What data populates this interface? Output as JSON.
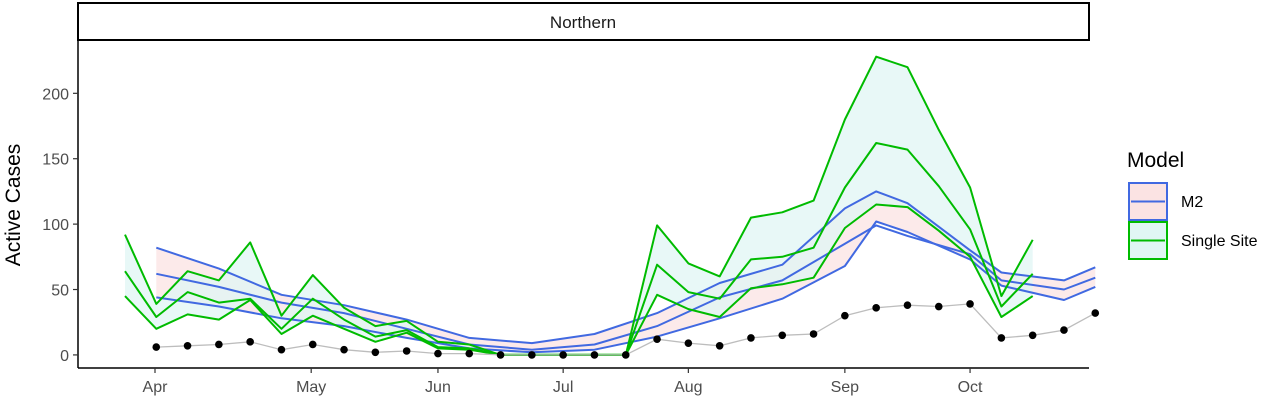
{
  "chart_data": {
    "type": "line",
    "facet_label": "Northern",
    "ylabel": "Active Cases",
    "xlabel": "",
    "ylim": [
      -10,
      240
    ],
    "y_ticks": [
      0,
      50,
      100,
      150,
      200
    ],
    "x_ticks": [
      {
        "label": "Apr",
        "x": 0.96
      },
      {
        "label": "May",
        "x": 5.95
      },
      {
        "label": "Jun",
        "x": 10.0
      },
      {
        "label": "Jul",
        "x": 14.0
      },
      {
        "label": "Aug",
        "x": 18.0
      },
      {
        "label": "Sep",
        "x": 23.0
      },
      {
        "label": "Oct",
        "x": 27.0
      }
    ],
    "xlim": [
      -1.5,
      30.8
    ],
    "observed": {
      "x": [
        1,
        2,
        3,
        4,
        5,
        6,
        7,
        8,
        9,
        10,
        11,
        12,
        13,
        14,
        15,
        16,
        17,
        18,
        19,
        20,
        21,
        22,
        23,
        24,
        25,
        26,
        27,
        28,
        29,
        30,
        31
      ],
      "y": [
        6,
        7,
        8,
        10,
        4,
        8,
        4,
        2,
        3,
        1,
        1,
        0,
        0,
        0,
        0,
        0,
        12,
        9,
        7,
        13,
        15,
        16,
        30,
        36,
        38,
        37,
        39,
        13,
        15,
        19,
        32
      ]
    },
    "legend": {
      "title": "Model",
      "items": [
        {
          "label": "M2",
          "line_color": "#4169e1",
          "fill_color": "#fbe3e3"
        },
        {
          "label": "Single Site",
          "line_color": "#00bb00",
          "fill_color": "#e0f6f4"
        }
      ]
    },
    "series": [
      {
        "name": "M2",
        "x": [
          1,
          3,
          5,
          7,
          9,
          11,
          13,
          15,
          17,
          19,
          21,
          23,
          24,
          25,
          27,
          28,
          30,
          31
        ],
        "mid": [
          62,
          52,
          40,
          32,
          20,
          8,
          4,
          8,
          22,
          44,
          57,
          85,
          99,
          91,
          77,
          57,
          50,
          59
        ],
        "upper": [
          82,
          66,
          46,
          38,
          27,
          13,
          9,
          16,
          32,
          55,
          69,
          112,
          125,
          116,
          80,
          63,
          57,
          67
        ],
        "lower": [
          44,
          37,
          28,
          22,
          13,
          5,
          2,
          4,
          14,
          28,
          43,
          68,
          102,
          94,
          73,
          53,
          42,
          52
        ]
      },
      {
        "name": "Single Site",
        "x": [
          0,
          1,
          2,
          3,
          4,
          5,
          6,
          7,
          8,
          9,
          10,
          11,
          12,
          13,
          14,
          15,
          16,
          17,
          18,
          19,
          20,
          21,
          22,
          23,
          24,
          25,
          26,
          27,
          28,
          29
        ],
        "mid": [
          64,
          29,
          48,
          40,
          43,
          20,
          43,
          27,
          14,
          19,
          6,
          5,
          0,
          0,
          0,
          0,
          0,
          69,
          48,
          43,
          73,
          75,
          82,
          128,
          162,
          157,
          129,
          96,
          37,
          62
        ],
        "upper": [
          92,
          39,
          64,
          57,
          86,
          30,
          61,
          36,
          22,
          26,
          10,
          8,
          0,
          0,
          0,
          0,
          0,
          99,
          70,
          60,
          105,
          109,
          118,
          180,
          228,
          220,
          172,
          128,
          45,
          88
        ],
        "lower": [
          45,
          20,
          31,
          27,
          42,
          16,
          30,
          20,
          10,
          17,
          5,
          4,
          0,
          0,
          0,
          0,
          0,
          46,
          35,
          29,
          51,
          54,
          59,
          97,
          115,
          113,
          95,
          75,
          29,
          45
        ]
      }
    ]
  }
}
